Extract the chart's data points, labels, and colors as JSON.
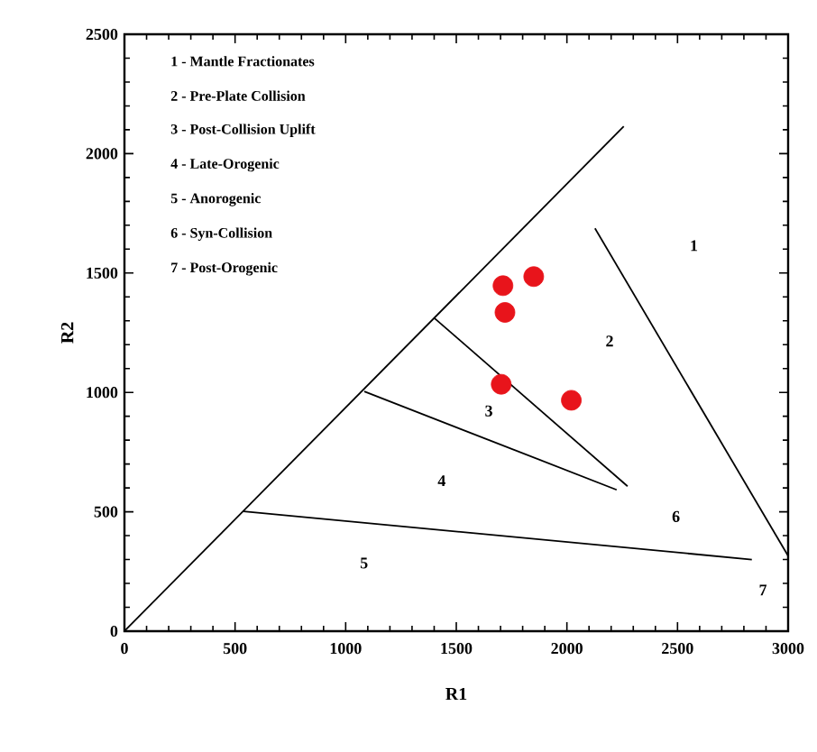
{
  "chart_data": {
    "type": "scatter",
    "xlabel": "R1",
    "ylabel": "R2",
    "xlim": [
      0,
      3000
    ],
    "ylim": [
      0,
      2500
    ],
    "xticks": [
      0,
      500,
      1000,
      1500,
      2000,
      2500,
      3000
    ],
    "yticks": [
      0,
      500,
      1000,
      1500,
      2000,
      2500
    ],
    "grid": false,
    "series": [
      {
        "color": "#e8141b",
        "x": [
          1711,
          1850,
          1720,
          1703,
          2020
        ],
        "values": [
          1447,
          1485,
          1335,
          1034,
          967
        ]
      },
      {
        "type": "line",
        "marker": "none",
        "color": "#000000",
        "x": [
          0,
          2257
        ],
        "values": [
          0,
          2114
        ]
      },
      {
        "type": "line",
        "marker": "none",
        "color": "#000000",
        "x": [
          2127,
          3000
        ],
        "values": [
          1687,
          315
        ]
      },
      {
        "type": "line",
        "marker": "none",
        "color": "#000000",
        "x": [
          1400,
          2274
        ],
        "values": [
          1312,
          607
        ]
      },
      {
        "type": "line",
        "marker": "none",
        "color": "#000000",
        "x": [
          1084,
          2225
        ],
        "values": [
          1004,
          592
        ]
      },
      {
        "type": "line",
        "marker": "none",
        "color": "#000000",
        "x": [
          538,
          2836
        ],
        "values": [
          502,
          300
        ]
      }
    ],
    "annotations": [
      "1 - Mantle Fractionates",
      "2 - Pre-Plate Collision",
      "3 - Post-Collision Uplift",
      "4 - Late-Orogenic",
      "5 - Anorogenic",
      "6 - Syn-Collision",
      "7 - Post-Orogenic",
      "1",
      "2",
      "3",
      "4",
      "5",
      "6",
      "7"
    ]
  }
}
